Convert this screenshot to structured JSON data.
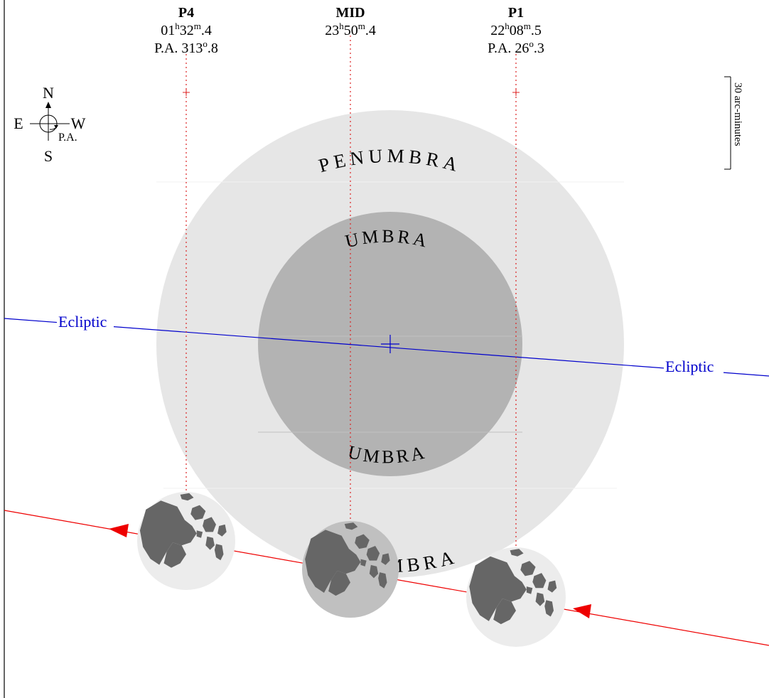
{
  "contacts": [
    {
      "label": "P4",
      "time": {
        "hour": "01",
        "h": "h",
        "minute": "32",
        "m": "m",
        "tenth": ".4"
      },
      "pa": {
        "prefix": "P.A. ",
        "whole": "313",
        "deg": "o",
        "tenth": ".8"
      }
    },
    {
      "label": "MID",
      "time": {
        "hour": "23",
        "h": "h",
        "minute": "50",
        "m": "m",
        "tenth": ".4"
      },
      "pa": null
    },
    {
      "label": "P1",
      "time": {
        "hour": "22",
        "h": "h",
        "minute": "08",
        "m": "m",
        "tenth": ".5"
      },
      "pa": {
        "prefix": "P.A. ",
        "whole": "26",
        "deg": "o",
        "tenth": ".3"
      }
    }
  ],
  "compass": {
    "north": "N",
    "south": "S",
    "east": "E",
    "west": "W",
    "pa": "P.A."
  },
  "scale_label": "30 arc-minutes",
  "penumbra_label": "PENUMBRA",
  "umbra_label": "UMBRA",
  "ecliptic_label": "Ecliptic",
  "colors": {
    "penumbra": "#e6e6e6",
    "umbra": "#b3b3b3",
    "ecliptic": "#0000cc",
    "moon_path": "#ee0000",
    "guide": "#dd2222",
    "moon_light": "#ececec",
    "moon_mid": "#c0c0c0",
    "maria": "#666666"
  }
}
